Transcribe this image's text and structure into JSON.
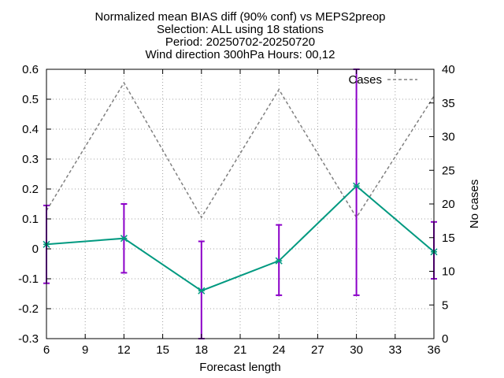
{
  "chart_data": {
    "type": "line",
    "title_lines": [
      "Normalized mean BIAS diff (90% conf) vs MEPS2preop",
      "Selection: ALL using    18 stations",
      "Period: 20250702-20250720",
      "Wind direction 300hPa   Hours: 00,12"
    ],
    "xlabel": "Forecast length",
    "ylabel": "",
    "y2label": "No cases",
    "xlim": [
      6,
      36
    ],
    "ylim": [
      -0.3,
      0.6
    ],
    "y2lim": [
      0,
      40
    ],
    "xticks": [
      6,
      9,
      12,
      15,
      18,
      21,
      24,
      27,
      30,
      33,
      36
    ],
    "yticks": [
      -0.3,
      -0.2,
      -0.1,
      0,
      0.1,
      0.2,
      0.3,
      0.4,
      0.5,
      0.6
    ],
    "yticks_labels": [
      "-0.3",
      "-0.2",
      "-0.1",
      "0",
      "0.1",
      "0.2",
      "0.3",
      "0.4",
      "0.5",
      "0.6"
    ],
    "y2ticks": [
      0,
      5,
      10,
      15,
      20,
      25,
      30,
      35,
      40
    ],
    "grid": true,
    "legend_position": "top-right",
    "series": [
      {
        "name": "",
        "axis": "y",
        "color": "#009980",
        "errorbar_color": "#8b00c8",
        "x": [
          6,
          12,
          18,
          24,
          30,
          36
        ],
        "y": [
          0.015,
          0.035,
          -0.14,
          -0.04,
          0.21,
          -0.01
        ],
        "low": [
          -0.115,
          -0.08,
          -0.3,
          -0.155,
          -0.155,
          -0.1
        ],
        "high": [
          0.145,
          0.15,
          0.025,
          0.08,
          0.6,
          0.09
        ]
      },
      {
        "name": "Cases",
        "axis": "y2",
        "color": "#808080",
        "dashed": true,
        "x": [
          6,
          12,
          18,
          24,
          30,
          36
        ],
        "y": [
          19,
          38,
          18,
          37,
          18,
          36
        ]
      }
    ]
  }
}
